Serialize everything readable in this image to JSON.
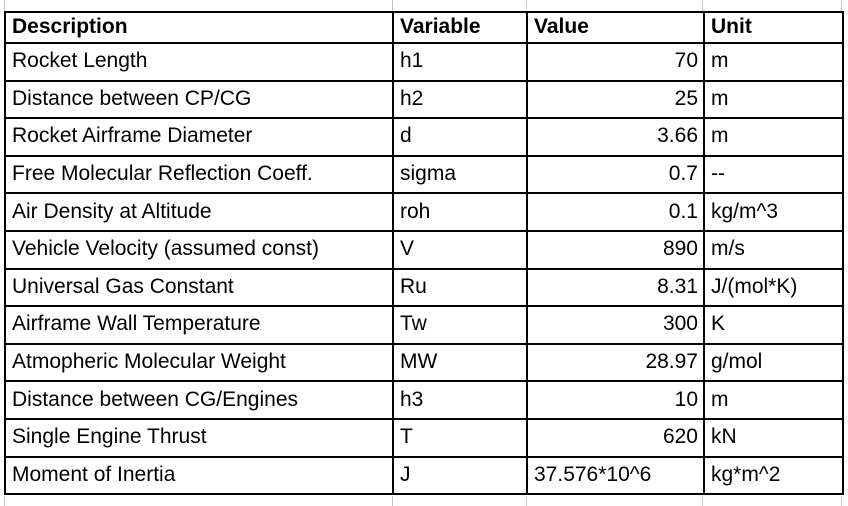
{
  "app": {
    "view": "spreadsheet-parameter-table"
  },
  "colors": {
    "background": "#ffffff",
    "table_border": "#000000",
    "text": "#000000",
    "faint_gridline": "#c6c6c6"
  },
  "table": {
    "columns": [
      {
        "label": "Description",
        "align": "left"
      },
      {
        "label": "Variable",
        "align": "left"
      },
      {
        "label": "Value",
        "align": "left"
      },
      {
        "label": "Unit",
        "align": "left"
      }
    ],
    "rows": [
      {
        "description": "Rocket Length",
        "variable": "h1",
        "value": "70",
        "value_align": "right",
        "unit": "m"
      },
      {
        "description": "Distance between CP/CG",
        "variable": "h2",
        "value": "25",
        "value_align": "right",
        "unit": "m"
      },
      {
        "description": "Rocket Airframe Diameter",
        "variable": "d",
        "value": "3.66",
        "value_align": "right",
        "unit": "m"
      },
      {
        "description": "Free Molecular Reflection Coeff.",
        "variable": "sigma",
        "value": "0.7",
        "value_align": "right",
        "unit": "--"
      },
      {
        "description": "Air Density at Altitude",
        "variable": "roh",
        "value": "0.1",
        "value_align": "right",
        "unit": "kg/m^3"
      },
      {
        "description": "Vehicle Velocity (assumed const)",
        "variable": "V",
        "value": "890",
        "value_align": "right",
        "unit": "m/s"
      },
      {
        "description": "Universal Gas Constant",
        "variable": "Ru",
        "value": "8.31",
        "value_align": "right",
        "unit": "J/(mol*K)"
      },
      {
        "description": "Airframe Wall Temperature",
        "variable": "Tw",
        "value": "300",
        "value_align": "right",
        "unit": "K"
      },
      {
        "description": "Atmopheric Molecular Weight",
        "variable": "MW",
        "value": "28.97",
        "value_align": "right",
        "unit": "g/mol"
      },
      {
        "description": "Distance between CG/Engines",
        "variable": "h3",
        "value": "10",
        "value_align": "right",
        "unit": "m"
      },
      {
        "description": "Single Engine Thrust",
        "variable": "T",
        "value": "620",
        "value_align": "right",
        "unit": "kN"
      },
      {
        "description": "Moment of Inertia",
        "variable": "J",
        "value": "37.576*10^6",
        "value_align": "left",
        "unit": "kg*m^2"
      }
    ]
  }
}
